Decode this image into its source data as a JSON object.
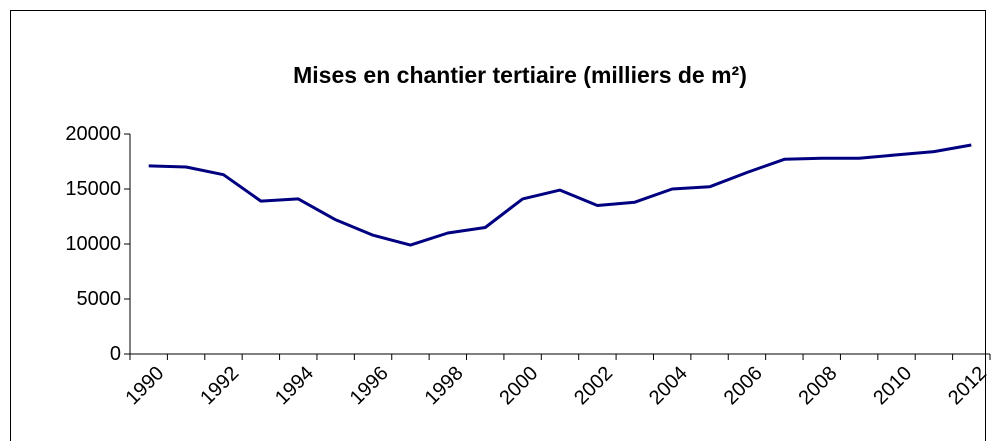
{
  "chart_data": {
    "type": "line",
    "title": "Mises en chantier tertiaire (milliers de m²)",
    "categories": [
      "1990",
      null,
      "1992",
      null,
      "1994",
      null,
      "1996",
      null,
      "1998",
      null,
      "2000",
      null,
      "2002",
      null,
      "2004",
      null,
      "2006",
      null,
      "2008",
      null,
      "2010",
      null,
      "2012"
    ],
    "series": [
      {
        "name": "Mises en chantier tertiaire",
        "color": "#000080",
        "values": [
          17100,
          17000,
          16300,
          13900,
          14100,
          12200,
          10800,
          9900,
          11000,
          11500,
          14100,
          14900,
          13500,
          13800,
          15000,
          15200,
          16500,
          17700,
          17800,
          17800,
          18100,
          18400,
          19000
        ]
      }
    ],
    "ylim": [
      0,
      20000
    ],
    "yticks": [
      0,
      5000,
      10000,
      15000,
      20000
    ],
    "legend": false
  }
}
